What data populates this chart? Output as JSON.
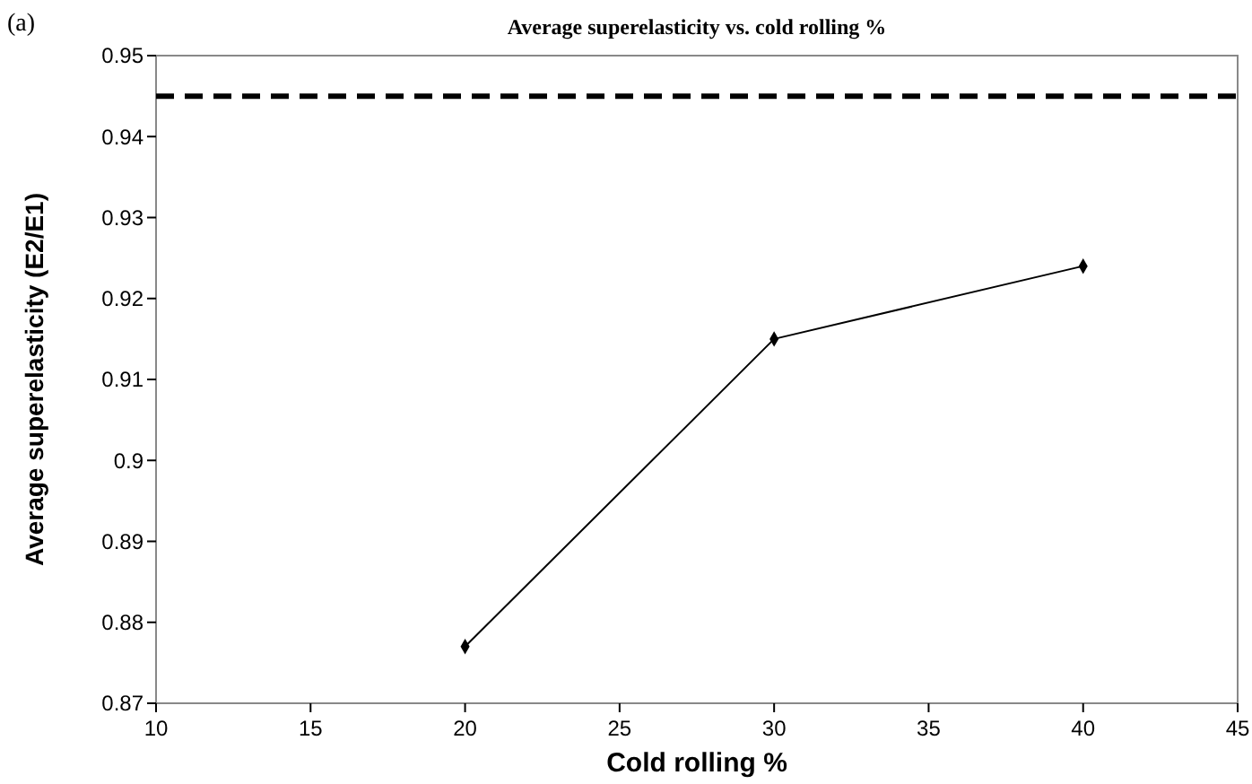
{
  "chart_data": {
    "type": "line",
    "title": "Average superelasticity vs. cold rolling %",
    "xlabel": "Cold rolling %",
    "ylabel": "Average superelasticity (E2/E1)",
    "annotations": [
      "(a)"
    ],
    "x": [
      20,
      30,
      40
    ],
    "series": [
      {
        "color": "#000000",
        "values": [
          0.877,
          0.915,
          0.924
        ]
      }
    ],
    "xlim": [
      10,
      45
    ],
    "xticks": [
      10,
      15,
      20,
      25,
      30,
      35,
      40,
      45
    ],
    "ylim": [
      0.87,
      0.95
    ],
    "yticks": [
      0.87,
      0.88,
      0.89,
      0.9,
      0.91,
      0.92,
      0.93,
      0.94,
      0.95
    ],
    "ref_lines": [
      {
        "axis": "y",
        "value": 0.945,
        "color": "#000000",
        "line_style": "dashed"
      }
    ],
    "marker": "diamond",
    "line_style": "solid"
  }
}
